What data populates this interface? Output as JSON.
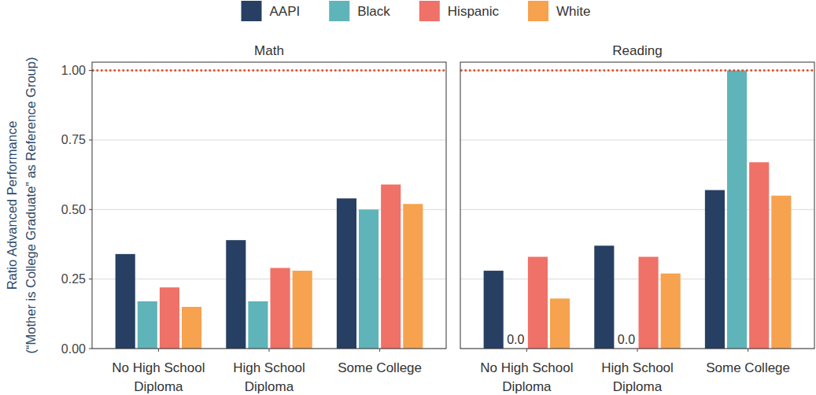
{
  "chart_data": {
    "type": "bar",
    "legend": "top",
    "grid": true,
    "y_label": [
      "Ratio Advanced Performance",
      "(“Mother is College Graduate” as Reference Group)"
    ],
    "categories": [
      "No High School Diploma",
      "High School Diploma",
      "Some College"
    ],
    "ylim": [
      0,
      1.03
    ],
    "yticks": [
      {
        "value": 0,
        "label": "0.00"
      },
      {
        "value": 0.25,
        "label": "0.25"
      },
      {
        "value": 0.5,
        "label": "0.50"
      },
      {
        "value": 0.75,
        "label": "0.75"
      },
      {
        "value": 1,
        "label": "1.00"
      }
    ],
    "reference_line": 1,
    "series": [
      {
        "name": "AAPI",
        "color": "#273f63"
      },
      {
        "name": "Black",
        "color": "#5fb4b9"
      },
      {
        "name": "Hispanic",
        "color": "#ef7168"
      },
      {
        "name": "White",
        "color": "#f6a24e"
      }
    ],
    "panels": [
      {
        "title": "Math",
        "series": [
          {
            "values": [
              0.34,
              0.39,
              0.54
            ]
          },
          {
            "values": [
              0.17,
              0.17,
              0.5
            ]
          },
          {
            "values": [
              0.22,
              0.29,
              0.59
            ]
          },
          {
            "values": [
              0.15,
              0.28,
              0.52
            ]
          }
        ]
      },
      {
        "title": "Reading",
        "series": [
          {
            "values": [
              0.28,
              0.37,
              0.57
            ]
          },
          {
            "values": [
              0,
              0,
              1.0
            ],
            "value_labels": [
              "0.0",
              "0.0",
              null
            ]
          },
          {
            "values": [
              0.33,
              0.33,
              0.67
            ]
          },
          {
            "values": [
              0.18,
              0.27,
              0.55
            ]
          }
        ]
      }
    ]
  }
}
